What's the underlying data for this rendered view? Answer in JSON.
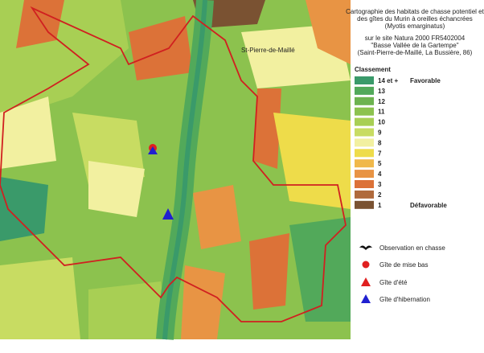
{
  "title_lines": [
    "Cartographie des habitats de chasse potentiel et",
    "des gîtes du Murin à oreilles échancrées",
    "(Myotis emarginatus)"
  ],
  "site_lines": [
    "sur le site Natura 2000 FR5402004",
    "\"Basse Vallée de la Gartempe\"",
    "(Saint-Pierre-de-Maillé, La Bussière, 86)"
  ],
  "legend": {
    "heading": "Classement",
    "classes": [
      {
        "label": "14 et +",
        "color": "#3a9a6a",
        "note": "Favorable"
      },
      {
        "label": "13",
        "color": "#52a95a"
      },
      {
        "label": "12",
        "color": "#6db34f"
      },
      {
        "label": "11",
        "color": "#8cc24e"
      },
      {
        "label": "10",
        "color": "#a8cf54"
      },
      {
        "label": "9",
        "color": "#c8dc62"
      },
      {
        "label": "8",
        "color": "#f2f0a0"
      },
      {
        "label": "7",
        "color": "#eedc4a"
      },
      {
        "label": "5",
        "color": "#f0b84a"
      },
      {
        "label": "4",
        "color": "#e89444"
      },
      {
        "label": "3",
        "color": "#dc7238"
      },
      {
        "label": "2",
        "color": "#b06a3c"
      },
      {
        "label": "1",
        "color": "#7a5232",
        "note": "Défavorable"
      }
    ],
    "symbols": [
      "Observation en chasse",
      "Gîte de mise bas",
      "Gîte d'été",
      "Gîte d'hibernation"
    ]
  },
  "map": {
    "labels": [
      "St-Pierre-de-Maillé"
    ]
  }
}
